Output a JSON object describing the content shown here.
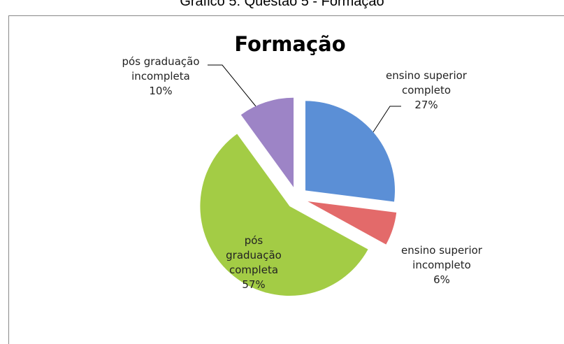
{
  "caption": "Gráfico 5: Questão 5 - Formação",
  "chart_data": {
    "type": "pie",
    "title": "Formação",
    "categories": [
      "ensino superior completo",
      "ensino superior incompleto",
      "pós graduação completa",
      "pós graduação incompleta"
    ],
    "values": [
      27,
      6,
      57,
      10
    ],
    "value_labels": [
      "27%",
      "6%",
      "57%",
      "10%"
    ],
    "colors": [
      "#5b8fd6",
      "#e36a6a",
      "#a3cc45",
      "#9d84c6"
    ]
  }
}
